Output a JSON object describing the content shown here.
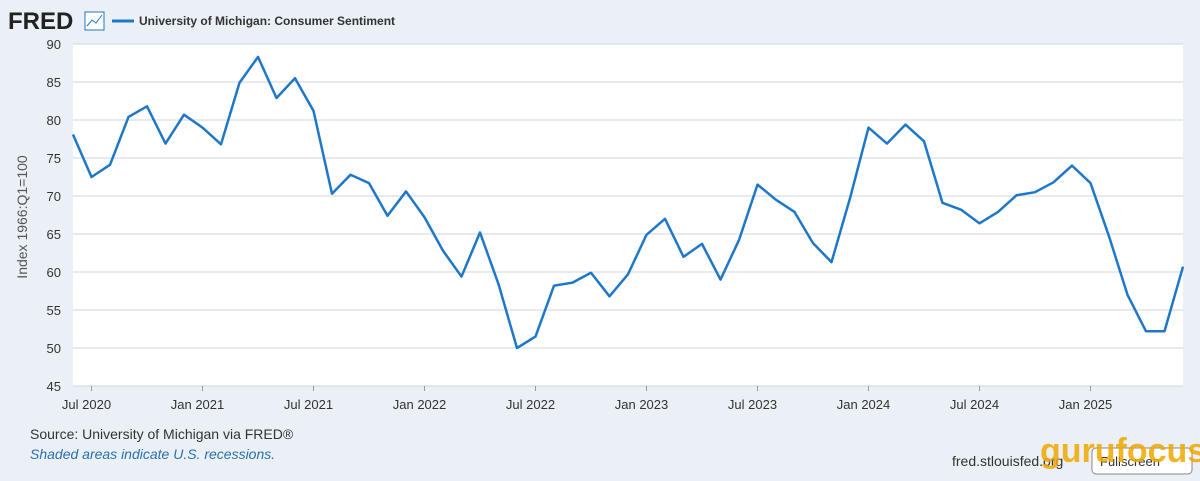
{
  "header": {
    "logo": "FRED"
  },
  "chart_data": {
    "type": "line",
    "y_label": "Index 1966:Q1=100",
    "x": [
      "2020-06",
      "2020-07",
      "2020-08",
      "2020-09",
      "2020-10",
      "2020-11",
      "2020-12",
      "2021-01",
      "2021-02",
      "2021-03",
      "2021-04",
      "2021-05",
      "2021-06",
      "2021-07",
      "2021-08",
      "2021-09",
      "2021-10",
      "2021-11",
      "2021-12",
      "2022-01",
      "2022-02",
      "2022-03",
      "2022-04",
      "2022-05",
      "2022-06",
      "2022-07",
      "2022-08",
      "2022-09",
      "2022-10",
      "2022-11",
      "2022-12",
      "2023-01",
      "2023-02",
      "2023-03",
      "2023-04",
      "2023-05",
      "2023-06",
      "2023-07",
      "2023-08",
      "2023-09",
      "2023-10",
      "2023-11",
      "2023-12",
      "2024-01",
      "2024-02",
      "2024-03",
      "2024-04",
      "2024-05",
      "2024-06",
      "2024-07",
      "2024-08",
      "2024-09",
      "2024-10",
      "2024-11",
      "2024-12",
      "2025-01",
      "2025-02",
      "2025-03",
      "2025-04",
      "2025-05",
      "2025-06"
    ],
    "series": [
      {
        "name": "University of Michigan: Consumer Sentiment",
        "color": "#1f77c9",
        "values": [
          78.1,
          72.5,
          74.1,
          80.4,
          81.8,
          76.9,
          80.7,
          79.0,
          76.8,
          84.9,
          88.3,
          82.9,
          85.5,
          81.2,
          70.3,
          72.8,
          71.7,
          67.4,
          70.6,
          67.2,
          62.8,
          59.4,
          65.2,
          58.4,
          50.0,
          51.5,
          58.2,
          58.6,
          59.9,
          56.8,
          59.7,
          64.9,
          67.0,
          62.0,
          63.7,
          59.0,
          64.2,
          71.5,
          69.5,
          67.9,
          63.8,
          61.3,
          69.7,
          79.0,
          76.9,
          79.4,
          77.2,
          69.1,
          68.2,
          66.4,
          67.9,
          70.1,
          70.5,
          71.8,
          74.0,
          71.7,
          64.7,
          57.0,
          52.2,
          52.2,
          60.7
        ]
      }
    ],
    "xlim": [
      "2020-06",
      "2025-06"
    ],
    "xticks": [
      {
        "value": "2020-07",
        "label": "Jul 2020"
      },
      {
        "value": "2021-01",
        "label": "Jan 2021"
      },
      {
        "value": "2021-07",
        "label": "Jul 2021"
      },
      {
        "value": "2022-01",
        "label": "Jan 2022"
      },
      {
        "value": "2022-07",
        "label": "Jul 2022"
      },
      {
        "value": "2023-01",
        "label": "Jan 2023"
      },
      {
        "value": "2023-07",
        "label": "Jul 2023"
      },
      {
        "value": "2024-01",
        "label": "Jan 2024"
      },
      {
        "value": "2024-07",
        "label": "Jul 2024"
      },
      {
        "value": "2025-01",
        "label": "Jan 2025"
      }
    ],
    "ylim": [
      45,
      90
    ],
    "yticks": [
      45,
      50,
      55,
      60,
      65,
      70,
      75,
      80,
      85,
      90
    ],
    "grid": true
  },
  "footer": {
    "source": "Source: University of Michigan via FRED®",
    "note": "Shaded areas indicate U.S. recessions.",
    "site": "fred.stlouisfed.org",
    "button": "Fullscreen",
    "watermark": "gurufocus"
  }
}
